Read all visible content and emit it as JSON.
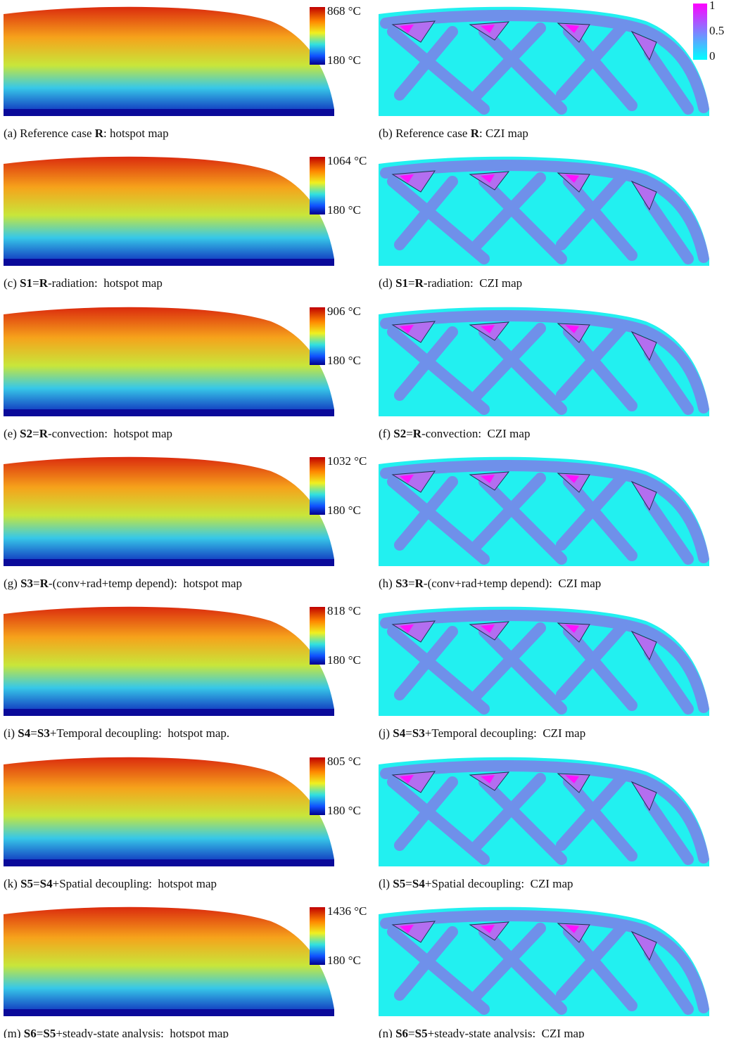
{
  "rows": [
    {
      "hotspot": {
        "caption": [
          {
            "text": "(a) Reference case "
          },
          {
            "text": "R",
            "bold": true
          },
          {
            "text": ": hotspot map"
          }
        ],
        "max": "868 °C",
        "min": "180 °C"
      },
      "czi": {
        "caption": [
          {
            "text": "(b) Reference case "
          },
          {
            "text": "R",
            "bold": true
          },
          {
            "text": ": CZI map"
          }
        ],
        "colorbar_labels": [
          "1",
          "0.5",
          "0"
        ]
      }
    },
    {
      "hotspot": {
        "caption": [
          {
            "text": "(c) "
          },
          {
            "text": "S1",
            "bold": true
          },
          {
            "text": "="
          },
          {
            "text": "R",
            "bold": true
          },
          {
            "text": "-radiation:  hotspot map"
          }
        ],
        "max": "1064 °C",
        "min": "180 °C"
      },
      "czi": {
        "caption": [
          {
            "text": "(d) "
          },
          {
            "text": "S1",
            "bold": true
          },
          {
            "text": "="
          },
          {
            "text": "R",
            "bold": true
          },
          {
            "text": "-radiation:  CZI map"
          }
        ]
      }
    },
    {
      "hotspot": {
        "caption": [
          {
            "text": "(e) "
          },
          {
            "text": "S2",
            "bold": true
          },
          {
            "text": "="
          },
          {
            "text": "R",
            "bold": true
          },
          {
            "text": "-convection:  hotspot map"
          }
        ],
        "max": "906 °C",
        "min": "180 °C"
      },
      "czi": {
        "caption": [
          {
            "text": "(f) "
          },
          {
            "text": "S2",
            "bold": true
          },
          {
            "text": "="
          },
          {
            "text": "R",
            "bold": true
          },
          {
            "text": "-convection:  CZI map"
          }
        ]
      }
    },
    {
      "hotspot": {
        "caption": [
          {
            "text": "(g) "
          },
          {
            "text": "S3",
            "bold": true
          },
          {
            "text": "="
          },
          {
            "text": "R",
            "bold": true
          },
          {
            "text": "-(conv+rad+temp depend):  hotspot map"
          }
        ],
        "max": "1032 °C",
        "min": "180 °C"
      },
      "czi": {
        "caption": [
          {
            "text": "(h) "
          },
          {
            "text": "S3",
            "bold": true
          },
          {
            "text": "="
          },
          {
            "text": "R",
            "bold": true
          },
          {
            "text": "-(conv+rad+temp depend):  CZI map"
          }
        ]
      }
    },
    {
      "hotspot": {
        "caption": [
          {
            "text": "(i) "
          },
          {
            "text": "S4",
            "bold": true
          },
          {
            "text": "="
          },
          {
            "text": "S3",
            "bold": true
          },
          {
            "text": "+Temporal decoupling:  hotspot map."
          }
        ],
        "max": "818 °C",
        "min": "180 °C"
      },
      "czi": {
        "caption": [
          {
            "text": "(j) "
          },
          {
            "text": "S4",
            "bold": true
          },
          {
            "text": "="
          },
          {
            "text": "S3",
            "bold": true
          },
          {
            "text": "+Temporal decoupling:  CZI map"
          }
        ]
      }
    },
    {
      "hotspot": {
        "caption": [
          {
            "text": "(k) "
          },
          {
            "text": "S5",
            "bold": true
          },
          {
            "text": "="
          },
          {
            "text": "S4",
            "bold": true
          },
          {
            "text": "+Spatial decoupling:  hotspot map"
          }
        ],
        "max": "805 °C",
        "min": "180 °C"
      },
      "czi": {
        "caption": [
          {
            "text": "(l) "
          },
          {
            "text": "S5",
            "bold": true
          },
          {
            "text": "="
          },
          {
            "text": "S4",
            "bold": true
          },
          {
            "text": "+Spatial decoupling:  CZI map"
          }
        ]
      }
    },
    {
      "hotspot": {
        "caption": [
          {
            "text": "(m) "
          },
          {
            "text": "S6",
            "bold": true
          },
          {
            "text": "="
          },
          {
            "text": "S5",
            "bold": true
          },
          {
            "text": "+steady-state analysis:  hotspot map"
          }
        ],
        "max": "1436 °C",
        "min": "180 °C"
      },
      "czi": {
        "caption": [
          {
            "text": "(n) "
          },
          {
            "text": "S6",
            "bold": true
          },
          {
            "text": "="
          },
          {
            "text": "S5",
            "bold": true
          },
          {
            "text": "+steady-state analysis:  CZI map"
          }
        ]
      }
    }
  ]
}
